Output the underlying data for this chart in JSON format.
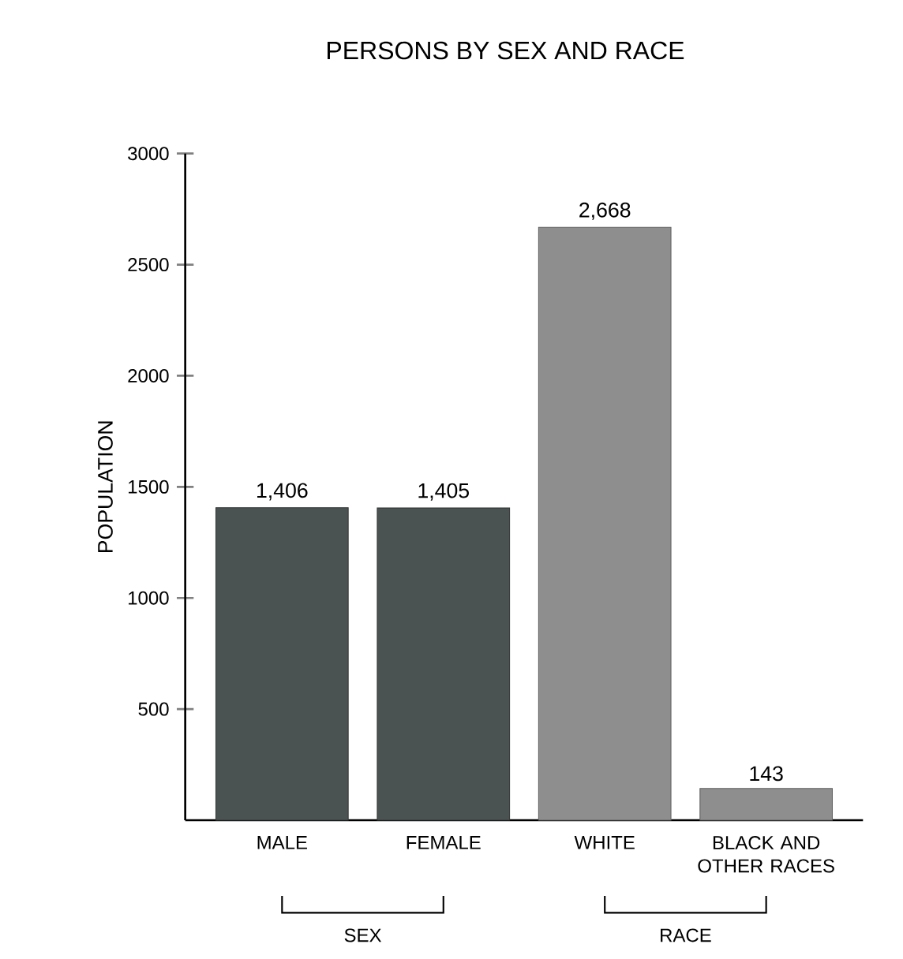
{
  "chart_data": {
    "type": "bar",
    "title": "PERSONS BY SEX AND RACE",
    "ylabel": "POPULATION",
    "categories": [
      "MALE",
      "FEMALE",
      "WHITE",
      "BLACK AND OTHER RACES"
    ],
    "values": [
      1406,
      1405,
      2668,
      143
    ],
    "colors": [
      "#4b5252",
      "#4b5252",
      "#8e8e8e",
      "#8e8e8e"
    ],
    "value_labels": [
      "1,406",
      "1,405",
      "2,668",
      "143"
    ],
    "ylim": [
      0,
      3000
    ],
    "yticks": [
      500,
      1000,
      1500,
      2000,
      2500,
      3000
    ],
    "annotations": [
      "SEX",
      "RACE"
    ],
    "grid": false
  }
}
